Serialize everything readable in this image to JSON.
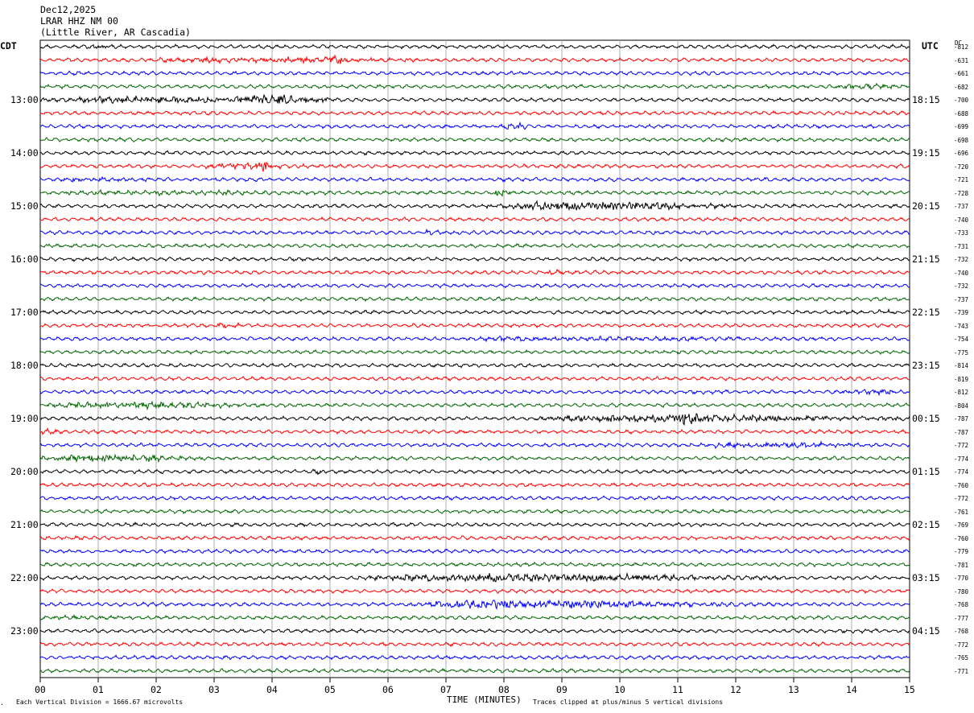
{
  "header": {
    "date": "Dec12,2025",
    "station": "LRAR HHZ NM 00",
    "location": "(Little River, AR Cascadia)"
  },
  "left_tz": "CDT",
  "right_tz": "UTC",
  "dc_label": "DC",
  "footer": {
    "scale_note": "Each Vertical Division = 1666.67 microvolts",
    "x_title": "TIME (MINUTES)",
    "clip_note": "Traces clipped at plus/minus 5 vertical divisions"
  },
  "colors": {
    "trace_cycle": [
      "#000000",
      "#ff0000",
      "#0000ff",
      "#006600"
    ],
    "grid": "#999999"
  },
  "chart_data": {
    "type": "line",
    "title": "LRAR HHZ NM 00",
    "xlabel": "TIME (MINUTES)",
    "xlim": [
      0,
      15
    ],
    "x_ticks": [
      "00",
      "01",
      "02",
      "03",
      "04",
      "05",
      "06",
      "07",
      "08",
      "09",
      "10",
      "11",
      "12",
      "13",
      "14",
      "15"
    ],
    "left_hour_labels": [
      "13:00",
      "14:00",
      "15:00",
      "16:00",
      "17:00",
      "18:00",
      "19:00",
      "20:00",
      "21:00",
      "22:00",
      "23:00"
    ],
    "right_hour_labels": [
      "18:15",
      "19:15",
      "20:15",
      "21:15",
      "22:15",
      "23:15",
      "00:15",
      "01:15",
      "02:15",
      "03:15",
      "04:15"
    ],
    "trace_dc_values": [
      "-812",
      "-631",
      "-661",
      "-682",
      "-700",
      "-688",
      "-699",
      "-698",
      "-696",
      "-720",
      "-721",
      "-728",
      "-737",
      "-740",
      "-733",
      "-731",
      "-732",
      "-740",
      "-732",
      "-737",
      "-739",
      "-743",
      "-754",
      "-775",
      "-814",
      "-819",
      "-812",
      "-804",
      "-787",
      "-787",
      "-772",
      "-774",
      "-774",
      "-760",
      "-772",
      "-761",
      "-769",
      "-760",
      "-779",
      "-781",
      "-770",
      "-780",
      "-768",
      "-777",
      "-768",
      "-772",
      "-765",
      "-771"
    ],
    "events": [
      {
        "trace": 0,
        "start": 0.8,
        "end": 1.3,
        "amp": 2
      },
      {
        "trace": 1,
        "start": 1.5,
        "end": 7.0,
        "amp": 2.2
      },
      {
        "trace": 1,
        "start": 4.9,
        "end": 5.3,
        "amp": 4
      },
      {
        "trace": 3,
        "start": 13.5,
        "end": 15,
        "amp": 1.8
      },
      {
        "trace": 4,
        "start": 0.0,
        "end": 5.2,
        "amp": 3
      },
      {
        "trace": 4,
        "start": 3.3,
        "end": 5.0,
        "amp": 3.8
      },
      {
        "trace": 6,
        "start": 7.9,
        "end": 8.5,
        "amp": 2.5
      },
      {
        "trace": 9,
        "start": 2.8,
        "end": 4.5,
        "amp": 2.5
      },
      {
        "trace": 9,
        "start": 3.6,
        "end": 4.1,
        "amp": 4
      },
      {
        "trace": 10,
        "start": 0.3,
        "end": 2.0,
        "amp": 1.6
      },
      {
        "trace": 11,
        "start": 0.0,
        "end": 5.0,
        "amp": 1.6
      },
      {
        "trace": 11,
        "start": 7.8,
        "end": 8.1,
        "amp": 4
      },
      {
        "trace": 12,
        "start": 7.7,
        "end": 12.0,
        "amp": 4
      },
      {
        "trace": 14,
        "start": 6.6,
        "end": 7.0,
        "amp": 1.8
      },
      {
        "trace": 17,
        "start": 8.7,
        "end": 9.1,
        "amp": 2
      },
      {
        "trace": 20,
        "start": 14.4,
        "end": 14.8,
        "amp": 2
      },
      {
        "trace": 21,
        "start": 3.0,
        "end": 3.5,
        "amp": 2.5
      },
      {
        "trace": 22,
        "start": 7.0,
        "end": 13.5,
        "amp": 1.6
      },
      {
        "trace": 26,
        "start": 13.8,
        "end": 15,
        "amp": 2.2
      },
      {
        "trace": 27,
        "start": 0.0,
        "end": 4.0,
        "amp": 2.8
      },
      {
        "trace": 28,
        "start": 8.5,
        "end": 15,
        "amp": 3.2
      },
      {
        "trace": 28,
        "start": 10.9,
        "end": 11.6,
        "amp": 4.2
      },
      {
        "trace": 29,
        "start": 0.0,
        "end": 0.5,
        "amp": 1.8
      },
      {
        "trace": 30,
        "start": 11.0,
        "end": 15,
        "amp": 1.8
      },
      {
        "trace": 31,
        "start": 0.0,
        "end": 3.0,
        "amp": 3
      },
      {
        "trace": 32,
        "start": 4.7,
        "end": 5.0,
        "amp": 1.8
      },
      {
        "trace": 40,
        "start": 5.5,
        "end": 13.0,
        "amp": 3.5
      },
      {
        "trace": 42,
        "start": 6.3,
        "end": 12.0,
        "amp": 3.8
      },
      {
        "trace": 43,
        "start": 0.0,
        "end": 2.0,
        "amp": 1.5
      }
    ]
  }
}
